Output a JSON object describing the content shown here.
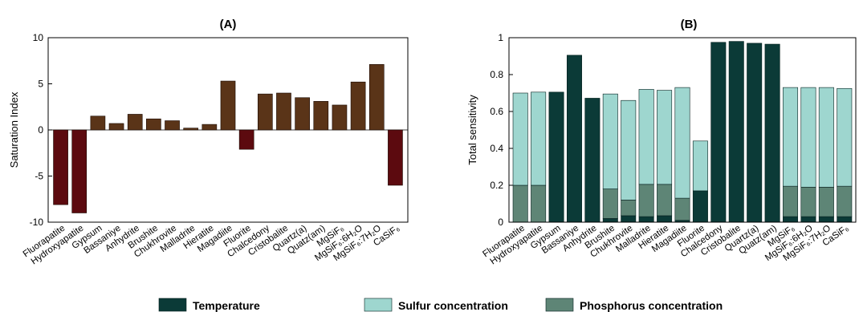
{
  "chart_data": [
    {
      "type": "bar",
      "title": "(A)",
      "ylabel": "Saturation Index",
      "xlabel": "",
      "ylim": [
        -10,
        10
      ],
      "yticks": [
        -10,
        -5,
        0,
        5,
        10
      ],
      "categories": [
        "Fluorapatite",
        "Hydroxyapatite",
        "Gypsum",
        "Bassaniye",
        "Anhydrite",
        "Brushite",
        "Chukhrovite",
        "Malladrite",
        "Hieratite",
        "Magadiite",
        "Fluorite",
        "Chalcedony",
        "Cristobalite",
        "Quartz(a)",
        "Quatz(am)",
        "MgSiF₆",
        "MgSiF₆:6H₂O",
        "MgSiF₆:7H₂O",
        "CaSiF₆"
      ],
      "values": [
        -8.1,
        -9.0,
        1.5,
        0.7,
        1.7,
        1.2,
        1.0,
        0.2,
        0.6,
        5.3,
        -2.1,
        3.9,
        4.0,
        3.5,
        3.1,
        2.7,
        5.2,
        7.1,
        -6.0
      ],
      "colors": {
        "positive": "#5a3418",
        "negative": "#5c0a0f"
      },
      "grid": false
    },
    {
      "type": "bar",
      "stacked": true,
      "title": "(B)",
      "ylabel": "Total sensitivity",
      "xlabel": "",
      "ylim": [
        0,
        1
      ],
      "yticks": [
        "0",
        "0.2",
        "0.4",
        "0.6",
        "0.8",
        "1"
      ],
      "categories": [
        "Fluorapatite",
        "Hydroxyapatite",
        "Gypsum",
        "Bassaniye",
        "Anhydrite",
        "Brushite",
        "Chukhrovite",
        "Malladrite",
        "Hieratite",
        "Magadiite",
        "Fluorite",
        "Chalcedony",
        "Cristobalite",
        "Quartz(a)",
        "Quatz(am)",
        "MgSiF₆",
        "MgSiF₆:6H₂O",
        "MgSiF₆:7H₂O",
        "CaSiF₆"
      ],
      "series": [
        {
          "name": "Temperature",
          "color": "#0b3a37",
          "values": [
            0,
            0,
            0.705,
            0.905,
            0.672,
            0.02,
            0.035,
            0.03,
            0.035,
            0.01,
            0.17,
            0.975,
            0.98,
            0.97,
            0.965,
            0.03,
            0.03,
            0.03,
            0.03
          ]
        },
        {
          "name": "Phosphorus concentration",
          "color": "#5e8576",
          "values": [
            0.2,
            0.2,
            0,
            0,
            0,
            0.16,
            0.085,
            0.175,
            0.17,
            0.12,
            0,
            0,
            0,
            0,
            0,
            0.165,
            0.16,
            0.16,
            0.165
          ]
        },
        {
          "name": "Sulfur concentration",
          "color": "#9ed6cf",
          "values": [
            0.5,
            0.505,
            0,
            0,
            0,
            0.515,
            0.54,
            0.515,
            0.51,
            0.6,
            0.27,
            0,
            0,
            0,
            0,
            0.535,
            0.54,
            0.54,
            0.53
          ]
        }
      ],
      "legend": {
        "position": "bottom",
        "order": [
          "Temperature",
          "Sulfur concentration",
          "Phosphorus concentration"
        ]
      },
      "grid": false
    }
  ]
}
